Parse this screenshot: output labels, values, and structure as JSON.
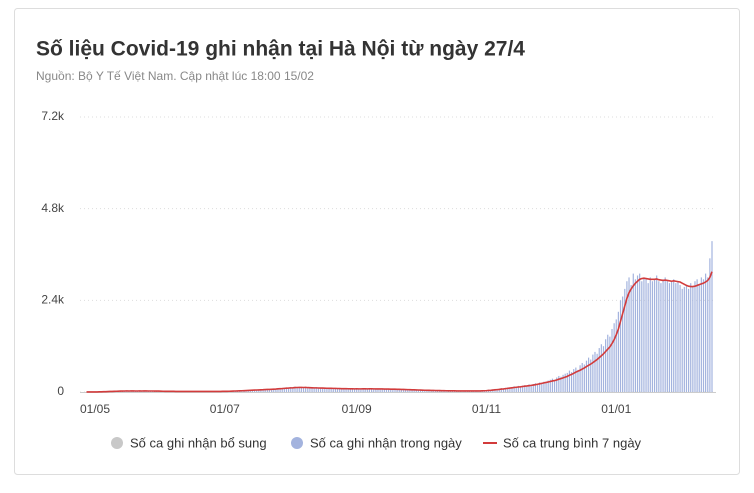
{
  "chart_data": {
    "type": "bar+line",
    "title": "Số liệu Covid-19 ghi nhận tại Hà Nội từ ngày 27/4",
    "subtitle": "Nguồn: Bộ Y Tế Việt Nam. Cập nhật lúc 18:00 15/02",
    "ylim": [
      0,
      7200
    ],
    "yticks": [
      0,
      {
        "value": 2400,
        "label": "2.4k"
      },
      {
        "value": 4800,
        "label": "4.8k"
      },
      {
        "value": 7200,
        "label": "7.2k"
      }
    ],
    "grid": true,
    "categories": [
      null,
      null,
      null,
      null,
      "01/05",
      null,
      null,
      null,
      null,
      null,
      null,
      null,
      null,
      null,
      null,
      null,
      null,
      null,
      null,
      null,
      null,
      null,
      null,
      null,
      null,
      null,
      null,
      null,
      null,
      null,
      null,
      null,
      null,
      null,
      null,
      null,
      null,
      null,
      null,
      null,
      null,
      null,
      null,
      null,
      null,
      null,
      null,
      null,
      null,
      null,
      null,
      null,
      null,
      null,
      null,
      null,
      null,
      null,
      null,
      null,
      null,
      null,
      null,
      null,
      null,
      "01/07",
      null,
      null,
      null,
      null,
      null,
      null,
      null,
      null,
      null,
      null,
      null,
      null,
      null,
      null,
      null,
      null,
      null,
      null,
      null,
      null,
      null,
      null,
      null,
      null,
      null,
      null,
      null,
      null,
      null,
      null,
      null,
      null,
      null,
      null,
      null,
      null,
      null,
      null,
      null,
      null,
      null,
      null,
      null,
      null,
      null,
      null,
      null,
      null,
      null,
      null,
      null,
      null,
      null,
      null,
      null,
      null,
      null,
      null,
      null,
      null,
      null,
      "01/09",
      null,
      null,
      null,
      null,
      null,
      null,
      null,
      null,
      null,
      null,
      null,
      null,
      null,
      null,
      null,
      null,
      null,
      null,
      null,
      null,
      null,
      null,
      null,
      null,
      null,
      null,
      null,
      null,
      null,
      null,
      null,
      null,
      null,
      null,
      null,
      null,
      null,
      null,
      null,
      null,
      null,
      null,
      null,
      null,
      null,
      null,
      null,
      null,
      null,
      null,
      null,
      null,
      null,
      null,
      null,
      null,
      null,
      null,
      null,
      null,
      "01/11",
      null,
      null,
      null,
      null,
      null,
      null,
      null,
      null,
      null,
      null,
      null,
      null,
      null,
      null,
      null,
      null,
      null,
      null,
      null,
      null,
      null,
      null,
      null,
      null,
      null,
      null,
      null,
      null,
      null,
      null,
      null,
      null,
      null,
      null,
      null,
      null,
      null,
      null,
      null,
      null,
      null,
      null,
      null,
      null,
      null,
      null,
      null,
      null,
      null,
      null,
      null,
      null,
      null,
      null,
      null,
      null,
      null,
      null,
      null,
      null,
      "01/01",
      null,
      null,
      null,
      null,
      null,
      null,
      null,
      null,
      null,
      null,
      null,
      null,
      null,
      null,
      null,
      null,
      null,
      null,
      null,
      null,
      null,
      null,
      null,
      null,
      null,
      null,
      null,
      null,
      null,
      null,
      null,
      null,
      null,
      null,
      null,
      null,
      null,
      null,
      null,
      null,
      null,
      null,
      null,
      null,
      null
    ],
    "series": [
      {
        "name": "Số ca ghi nhận bổ sung",
        "color": "#c8c8c8"
      },
      {
        "name": "Số ca ghi nhận trong ngày",
        "color": "#a3b3de",
        "type": "bar",
        "values": [
          0,
          2,
          1,
          0,
          3,
          5,
          8,
          10,
          15,
          12,
          20,
          25,
          18,
          30,
          22,
          28,
          35,
          20,
          25,
          30,
          18,
          40,
          22,
          15,
          30,
          25,
          20,
          35,
          28,
          18,
          22,
          30,
          25,
          15,
          20,
          15,
          20,
          10,
          25,
          12,
          18,
          22,
          8,
          15,
          20,
          12,
          18,
          10,
          14,
          20,
          16,
          12,
          9,
          15,
          18,
          11,
          13,
          20,
          17,
          10,
          14,
          12,
          16,
          19,
          22,
          20,
          25,
          18,
          30,
          35,
          28,
          40,
          32,
          45,
          38,
          50,
          42,
          55,
          48,
          60,
          52,
          65,
          58,
          70,
          62,
          75,
          68,
          80,
          90,
          85,
          95,
          100,
          88,
          110,
          120,
          105,
          130,
          115,
          140,
          125,
          110,
          120,
          105,
          135,
          100,
          115,
          95,
          110,
          125,
          90,
          105,
          100,
          85,
          95,
          110,
          90,
          80,
          100,
          85,
          95,
          75,
          90,
          80,
          85,
          70,
          95,
          80,
          90,
          75,
          85,
          100,
          70,
          80,
          95,
          85,
          70,
          75,
          90,
          65,
          80,
          70,
          85,
          75,
          60,
          70,
          80,
          65,
          55,
          70,
          60,
          50,
          65,
          55,
          45,
          60,
          50,
          40,
          45,
          40,
          35,
          50,
          30,
          40,
          35,
          28,
          42,
          30,
          25,
          38,
          32,
          20,
          30,
          25,
          35,
          22,
          28,
          30,
          20,
          26,
          32,
          24,
          30,
          28,
          22,
          35,
          30,
          40,
          45,
          50,
          60,
          55,
          70,
          80,
          65,
          90,
          100,
          85,
          110,
          120,
          105,
          130,
          150,
          140,
          160,
          130,
          170,
          180,
          160,
          200,
          190,
          210,
          230,
          220,
          250,
          240,
          270,
          260,
          300,
          320,
          350,
          300,
          380,
          420,
          400,
          450,
          480,
          500,
          560,
          520,
          600,
          640,
          580,
          700,
          760,
          720,
          820,
          900,
          850,
          980,
          1050,
          1000,
          1150,
          1250,
          1200,
          1380,
          1500,
          1450,
          1650,
          1800,
          1900,
          2100,
          2400,
          2500,
          2700,
          2900,
          3000,
          2800,
          3100,
          2950,
          3050,
          3100,
          2900,
          3000,
          2950,
          2850,
          3000,
          2900,
          2950,
          3050,
          2900,
          2850,
          2950,
          3000,
          2900,
          2850,
          2900,
          2950,
          2850,
          2900,
          2800,
          2700,
          2750,
          2800,
          2700,
          2850,
          2750,
          2900,
          2950,
          2800,
          3000,
          2950,
          3100,
          3000,
          3500,
          3950
        ]
      },
      {
        "name": "Số ca trung bình 7 ngày",
        "color": "#d23b3b",
        "type": "line",
        "values": [
          1,
          1,
          1,
          1,
          2,
          2,
          4,
          6,
          8,
          9,
          12,
          14,
          15,
          18,
          20,
          22,
          24,
          25,
          26,
          27,
          26,
          27,
          27,
          26,
          26,
          27,
          26,
          27,
          27,
          26,
          26,
          26,
          25,
          25,
          24,
          22,
          20,
          19,
          18,
          17,
          17,
          17,
          16,
          16,
          16,
          15,
          15,
          15,
          15,
          15,
          15,
          15,
          14,
          14,
          15,
          15,
          15,
          15,
          16,
          15,
          15,
          15,
          15,
          16,
          17,
          18,
          19,
          20,
          22,
          24,
          26,
          28,
          30,
          33,
          35,
          38,
          41,
          44,
          47,
          50,
          52,
          55,
          58,
          60,
          63,
          66,
          68,
          71,
          75,
          78,
          83,
          87,
          90,
          95,
          100,
          102,
          108,
          110,
          115,
          118,
          120,
          120,
          118,
          120,
          115,
          112,
          110,
          108,
          108,
          105,
          104,
          103,
          100,
          98,
          97,
          96,
          95,
          94,
          92,
          90,
          88,
          87,
          86,
          85,
          83,
          84,
          82,
          83,
          82,
          82,
          84,
          83,
          82,
          84,
          83,
          82,
          81,
          82,
          80,
          79,
          78,
          78,
          77,
          75,
          74,
          73,
          71,
          69,
          68,
          66,
          64,
          62,
          60,
          58,
          56,
          54,
          52,
          50,
          48,
          46,
          45,
          43,
          42,
          40,
          39,
          38,
          37,
          35,
          34,
          33,
          32,
          31,
          30,
          30,
          29,
          28,
          28,
          28,
          27,
          27,
          27,
          27,
          27,
          27,
          28,
          29,
          31,
          33,
          36,
          40,
          44,
          50,
          57,
          62,
          68,
          76,
          81,
          88,
          95,
          102,
          110,
          118,
          124,
          131,
          136,
          144,
          152,
          158,
          166,
          173,
          182,
          192,
          203,
          214,
          226,
          239,
          250,
          262,
          275,
          290,
          300,
          315,
          335,
          350,
          370,
          390,
          410,
          440,
          460,
          490,
          520,
          545,
          570,
          600,
          630,
          665,
          700,
          730,
          770,
          810,
          850,
          900,
          950,
          1000,
          1060,
          1120,
          1180,
          1270,
          1370,
          1500,
          1650,
          1850,
          2050,
          2250,
          2450,
          2600,
          2700,
          2780,
          2850,
          2900,
          2950,
          2970,
          2980,
          2970,
          2960,
          2950,
          2950,
          2950,
          2960,
          2940,
          2930,
          2920,
          2930,
          2920,
          2910,
          2900,
          2910,
          2900,
          2890,
          2880,
          2850,
          2820,
          2790,
          2770,
          2760,
          2760,
          2770,
          2790,
          2810,
          2830,
          2850,
          2880,
          2920,
          3000,
          3150
        ]
      }
    ]
  }
}
